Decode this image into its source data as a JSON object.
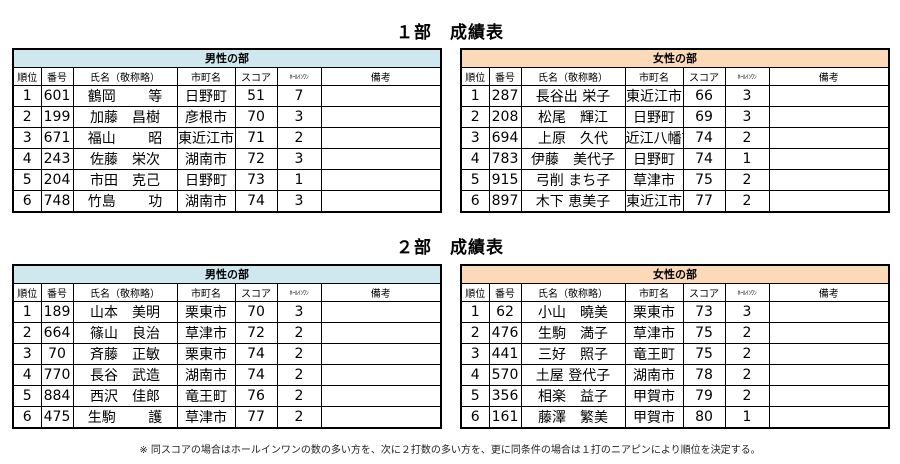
{
  "colors": {
    "male_header": "#cfe8f0",
    "female_header": "#fcd9b8"
  },
  "columns": {
    "rank": "順位",
    "number": "番号",
    "name": "氏名（敬称略）",
    "town": "市町名",
    "score": "スコア",
    "hole_in_one": "ﾎｰﾙｲﾝﾜﾝ",
    "remarks": "備考"
  },
  "sections": [
    {
      "title": "１部　成績表",
      "male": {
        "label": "男性の部",
        "rows": [
          {
            "rank": "1",
            "number": "601",
            "name": "鶴岡　　 等",
            "town": "日野町",
            "score": "51",
            "hio": "7",
            "remarks": ""
          },
          {
            "rank": "2",
            "number": "199",
            "name": "加藤　昌樹",
            "town": "彦根市",
            "score": "70",
            "hio": "3",
            "remarks": ""
          },
          {
            "rank": "3",
            "number": "671",
            "name": "福山　　 昭",
            "town": "東近江市",
            "score": "71",
            "hio": "2",
            "remarks": ""
          },
          {
            "rank": "4",
            "number": "243",
            "name": "佐藤　栄次",
            "town": "湖南市",
            "score": "72",
            "hio": "3",
            "remarks": ""
          },
          {
            "rank": "5",
            "number": "204",
            "name": "市田　克己",
            "town": "日野町",
            "score": "73",
            "hio": "1",
            "remarks": ""
          },
          {
            "rank": "6",
            "number": "748",
            "name": "竹島　　 功",
            "town": "湖南市",
            "score": "74",
            "hio": "3",
            "remarks": ""
          }
        ]
      },
      "female": {
        "label": "女性の部",
        "rows": [
          {
            "rank": "1",
            "number": "287",
            "name": "長谷出 栄子",
            "town": "東近江市",
            "score": "66",
            "hio": "3",
            "remarks": ""
          },
          {
            "rank": "2",
            "number": "208",
            "name": "松尾　輝江",
            "town": "日野町",
            "score": "69",
            "hio": "3",
            "remarks": ""
          },
          {
            "rank": "3",
            "number": "694",
            "name": "上原　久代",
            "town": "近江八幡市",
            "score": "74",
            "hio": "2",
            "remarks": ""
          },
          {
            "rank": "4",
            "number": "783",
            "name": "伊藤　美代子",
            "town": "日野町",
            "score": "74",
            "hio": "1",
            "remarks": ""
          },
          {
            "rank": "5",
            "number": "915",
            "name": "弓削 まち子",
            "town": "草津市",
            "score": "75",
            "hio": "2",
            "remarks": ""
          },
          {
            "rank": "6",
            "number": "897",
            "name": "木下 恵美子",
            "town": "東近江市",
            "score": "77",
            "hio": "2",
            "remarks": ""
          }
        ]
      }
    },
    {
      "title": "２部　成績表",
      "male": {
        "label": "男性の部",
        "rows": [
          {
            "rank": "1",
            "number": "189",
            "name": "山本　美明",
            "town": "栗東市",
            "score": "70",
            "hio": "3",
            "remarks": ""
          },
          {
            "rank": "2",
            "number": "664",
            "name": "篠山　良治",
            "town": "草津市",
            "score": "72",
            "hio": "2",
            "remarks": ""
          },
          {
            "rank": "3",
            "number": "70",
            "name": "斉藤　正敏",
            "town": "栗東市",
            "score": "74",
            "hio": "2",
            "remarks": ""
          },
          {
            "rank": "4",
            "number": "770",
            "name": "長谷　武造",
            "town": "湖南市",
            "score": "74",
            "hio": "2",
            "remarks": ""
          },
          {
            "rank": "5",
            "number": "884",
            "name": "西沢　佳郎",
            "town": "竜王町",
            "score": "76",
            "hio": "2",
            "remarks": ""
          },
          {
            "rank": "6",
            "number": "475",
            "name": "生駒　　 護",
            "town": "草津市",
            "score": "77",
            "hio": "2",
            "remarks": ""
          }
        ]
      },
      "female": {
        "label": "女性の部",
        "rows": [
          {
            "rank": "1",
            "number": "62",
            "name": "小山　曉美",
            "town": "栗東市",
            "score": "73",
            "hio": "3",
            "remarks": ""
          },
          {
            "rank": "2",
            "number": "476",
            "name": "生駒　満子",
            "town": "草津市",
            "score": "75",
            "hio": "2",
            "remarks": ""
          },
          {
            "rank": "3",
            "number": "441",
            "name": "三好　照子",
            "town": "竜王町",
            "score": "75",
            "hio": "2",
            "remarks": ""
          },
          {
            "rank": "4",
            "number": "570",
            "name": "土屋 登代子",
            "town": "湖南市",
            "score": "78",
            "hio": "2",
            "remarks": ""
          },
          {
            "rank": "5",
            "number": "356",
            "name": "相楽　益子",
            "town": "甲賀市",
            "score": "79",
            "hio": "2",
            "remarks": ""
          },
          {
            "rank": "6",
            "number": "161",
            "name": "藤澤　繁美",
            "town": "甲賀市",
            "score": "80",
            "hio": "1",
            "remarks": ""
          }
        ]
      }
    }
  ],
  "footnote": "※ 同スコアの場合はホールインワンの数の多い方を、次に２打数の多い方を、更に同条件の場合は１打のニアピンにより順位を決定する。"
}
